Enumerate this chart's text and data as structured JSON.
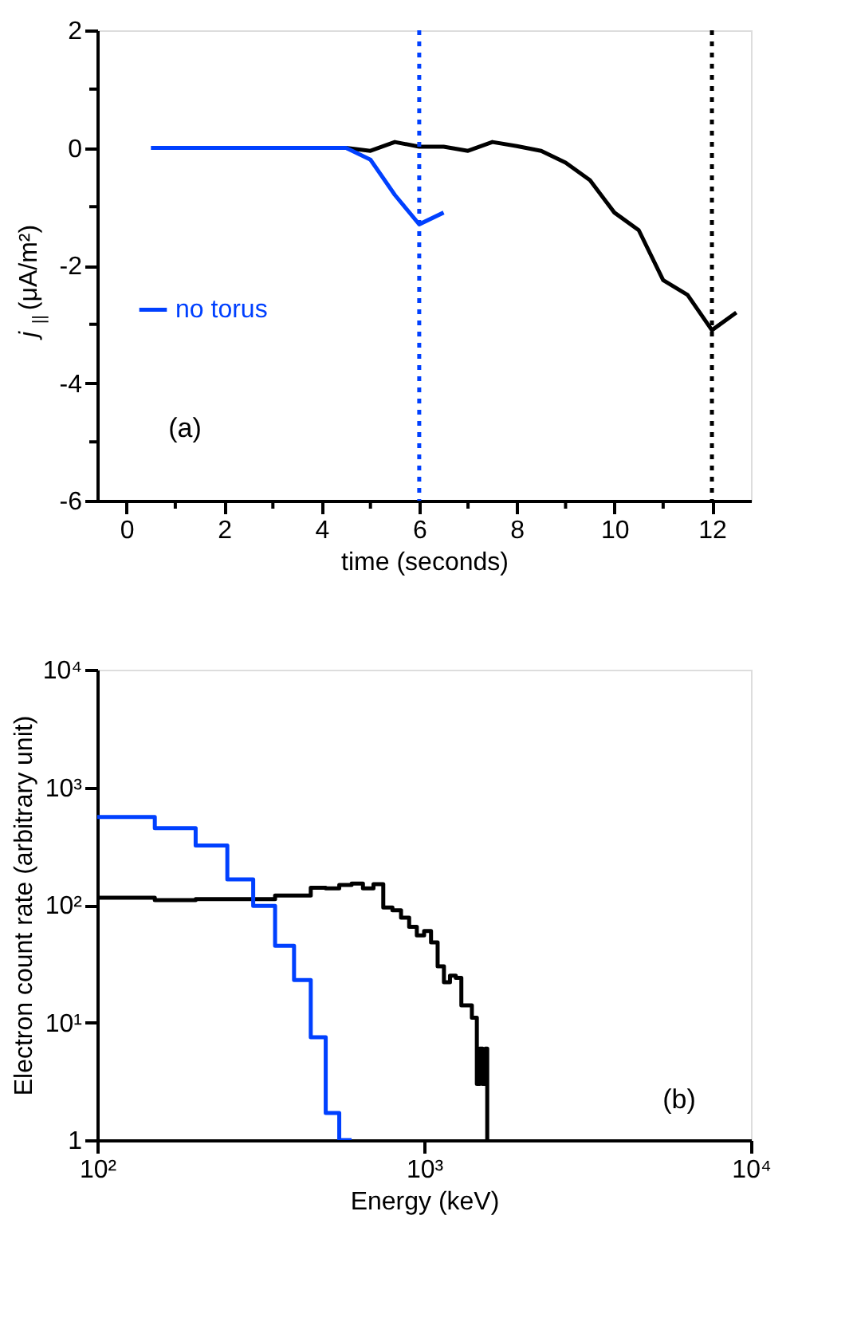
{
  "chart_data": [
    {
      "type": "line",
      "xlabel": "time (seconds)",
      "ylabel": "j$_{||}$ (μA/m²)",
      "xlim": [
        -0.6,
        12.8
      ],
      "ylim": [
        -6,
        2
      ],
      "xticks": [
        0,
        {
          "value": 1,
          "label": null
        },
        2,
        {
          "value": 3,
          "label": null
        },
        4,
        {
          "value": 5,
          "label": null
        },
        6,
        {
          "value": 7,
          "label": null
        },
        8,
        {
          "value": 9,
          "label": null
        },
        10,
        {
          "value": 11,
          "label": null
        },
        12
      ],
      "yticks": [
        -6,
        {
          "value": -5,
          "label": null
        },
        -4,
        {
          "value": -3,
          "label": null
        },
        -2,
        {
          "value": -1,
          "label": null
        },
        0,
        {
          "value": 1,
          "label": null
        },
        2
      ],
      "series": [
        {
          "color": "#000000",
          "x": [
            4.5,
            5,
            5.5,
            6,
            6.5,
            7,
            7.5,
            8,
            8.5,
            9,
            9.5,
            10,
            10.5,
            11,
            11.5,
            12,
            12.5
          ],
          "values": [
            0,
            -0.05,
            0.1,
            0.02,
            0.02,
            -0.05,
            0.1,
            0.03,
            -0.05,
            -0.25,
            -0.55,
            -1.1,
            -1.4,
            -2.25,
            -2.5,
            -3.1,
            -2.8
          ]
        },
        {
          "name": "no torus",
          "color": "#0040ff",
          "x": [
            0.5,
            1,
            1.5,
            2,
            2.5,
            3,
            3.5,
            4,
            4.5,
            5,
            5.5,
            6,
            6.5
          ],
          "values": [
            0,
            0,
            0,
            0,
            0,
            0,
            0,
            0,
            0,
            -0.2,
            -0.8,
            -1.3,
            -1.1
          ]
        }
      ],
      "ref_lines": [
        {
          "axis": "x",
          "value": 6,
          "color": "#0040ff",
          "line_style": "dotted"
        },
        {
          "axis": "x",
          "value": 12,
          "color": "#000000",
          "line_style": "dotted"
        }
      ],
      "annotations": [
        "(a)"
      ],
      "legend": "left",
      "grid": false
    },
    {
      "type": "step",
      "xlabel": "Energy (keV)",
      "ylabel": "Electron count rate (arbitrary unit)",
      "log": "xy",
      "xlim": [
        100,
        10000
      ],
      "ylim": [
        1,
        10000
      ],
      "xticks": [
        {
          "value": 100,
          "label": "10²"
        },
        {
          "value": 1000,
          "label": "10³"
        },
        {
          "value": 10000,
          "label": "10⁴"
        }
      ],
      "yticks": [
        1,
        {
          "value": 10,
          "label": "10¹"
        },
        {
          "value": 100,
          "label": "10²"
        },
        {
          "value": 1000,
          "label": "10³"
        },
        {
          "value": 10000,
          "label": "10⁴"
        }
      ],
      "series": [
        {
          "color": "#000000",
          "x": [
            100,
            150,
            200,
            350,
            450,
            500,
            550,
            600,
            650,
            700,
            750,
            800,
            850,
            900,
            950,
            1000,
            1050,
            1100,
            1150,
            1200,
            1250,
            1300,
            1400,
            1450,
            1480,
            1510,
            1540,
            1560
          ],
          "values": [
            115,
            110,
            112,
            120,
            140,
            138,
            148,
            152,
            138,
            150,
            95,
            90,
            78,
            65,
            55,
            60,
            48,
            30,
            22,
            25,
            24,
            14,
            11,
            3,
            6,
            3,
            6,
            1
          ]
        },
        {
          "color": "#0040ff",
          "x": [
            100,
            150,
            200,
            250,
            300,
            350,
            400,
            450,
            500,
            550,
            600
          ],
          "values": [
            560,
            450,
            320,
            165,
            98,
            45,
            23,
            7.5,
            1.7,
            1,
            1
          ]
        }
      ],
      "annotations": [
        "(b)"
      ],
      "grid": false
    }
  ]
}
